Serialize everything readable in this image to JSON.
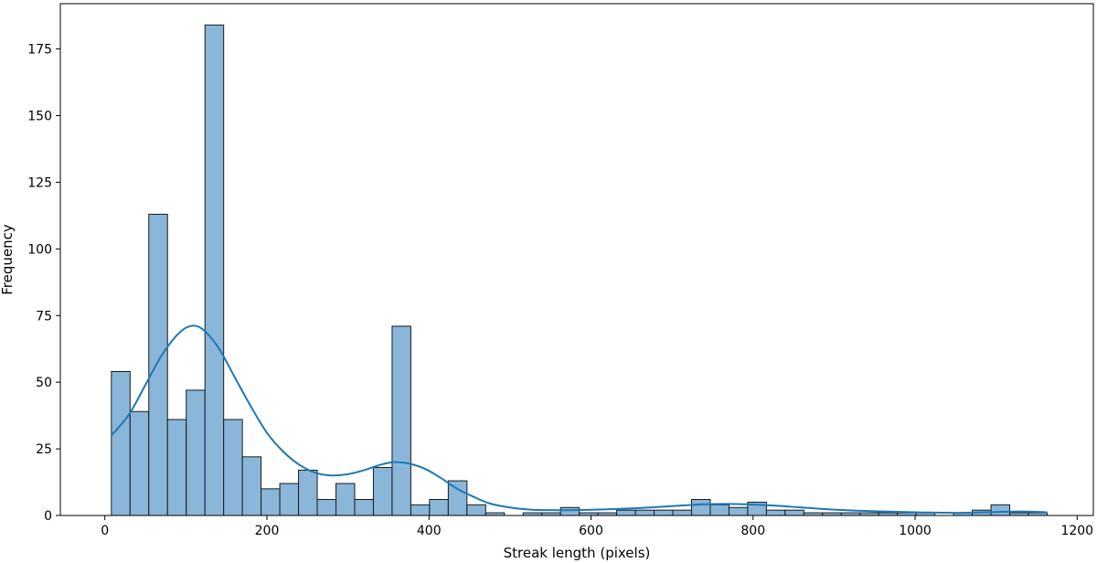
{
  "chart_data": {
    "type": "histogram",
    "xlabel": "Streak length (pixels)",
    "ylabel": "Frequency",
    "xlim": [
      -55,
      1220
    ],
    "ylim": [
      0,
      192
    ],
    "xticks": [
      0,
      200,
      400,
      600,
      800,
      1000,
      1200
    ],
    "yticks": [
      0,
      25,
      50,
      75,
      100,
      125,
      150,
      175
    ],
    "grid": false,
    "legend": "none",
    "bin_edges": [
      8,
      31.1,
      54.2,
      77.3,
      100.4,
      123.5,
      146.6,
      169.7,
      192.8,
      215.9,
      239,
      262.1,
      285.2,
      308.3,
      331.4,
      354.5,
      377.6,
      400.7,
      423.8,
      446.9,
      470,
      493.1,
      516.2,
      539.3,
      562.4,
      585.5,
      608.6,
      631.7,
      654.8,
      677.9,
      701,
      724.1,
      747.2,
      770.3,
      793.4,
      816.5,
      839.6,
      862.7,
      885.8,
      908.9,
      932,
      955.1,
      978.2,
      1001.3,
      1024.4,
      1047.5,
      1070.6,
      1093.7,
      1116.8,
      1139.9,
      1163
    ],
    "counts": [
      54,
      39,
      113,
      36,
      47,
      184,
      36,
      22,
      10,
      12,
      17,
      6,
      12,
      6,
      18,
      71,
      4,
      6,
      13,
      4,
      1,
      0,
      1,
      1,
      3,
      1,
      1,
      2,
      2,
      2,
      2,
      6,
      4,
      3,
      5,
      2,
      2,
      1,
      1,
      1,
      1,
      1,
      1,
      1,
      0,
      1,
      2,
      4,
      1,
      1
    ],
    "kde": {
      "x": [
        8,
        30,
        50,
        70,
        90,
        105,
        120,
        140,
        160,
        180,
        200,
        220,
        240,
        260,
        280,
        300,
        320,
        340,
        357,
        375,
        395,
        415,
        435,
        455,
        475,
        500,
        525,
        550,
        580,
        620,
        660,
        700,
        740,
        780,
        820,
        860,
        900,
        950,
        1000,
        1050,
        1100,
        1130,
        1163
      ],
      "y": [
        30,
        38,
        49,
        60,
        68,
        71,
        70,
        63,
        52,
        41,
        31,
        24,
        19,
        16,
        15,
        15.5,
        17,
        19,
        20,
        19.5,
        17.5,
        14,
        10,
        7,
        4.5,
        3,
        2.2,
        2,
        2,
        2.3,
        2.8,
        3.5,
        4.2,
        4.3,
        3.8,
        3,
        2.2,
        1.6,
        1.2,
        1,
        1.3,
        1.5,
        1.2
      ]
    },
    "colors": {
      "bar_fill": "#89b6d9",
      "bar_edge": "#1a1a1a",
      "kde_line": "#1f77b4"
    }
  }
}
